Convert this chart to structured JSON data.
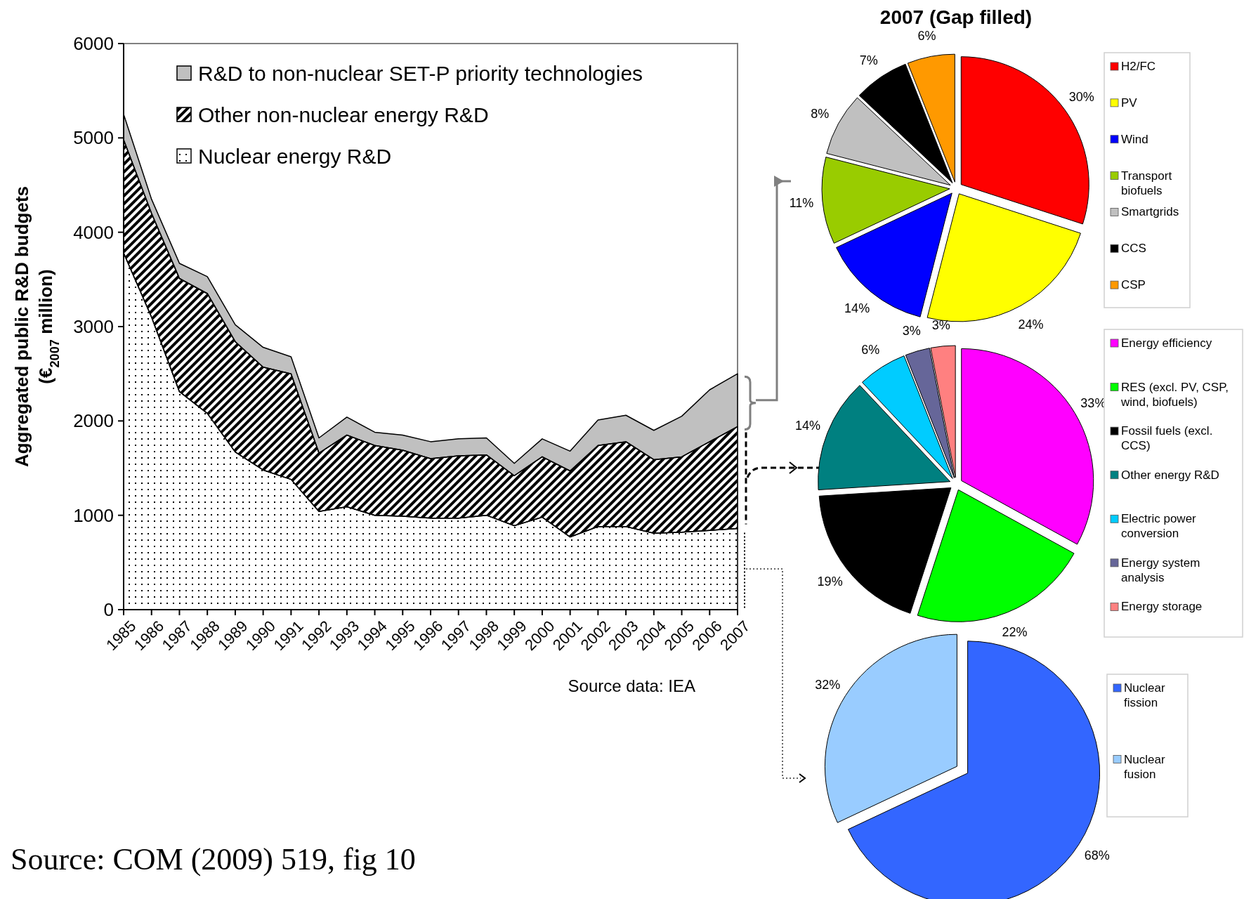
{
  "chart_data": [
    {
      "type": "area",
      "stacked": true,
      "ylabel": "Aggregated public R&D budgets (€$_{2007}$ million)",
      "ylim": [
        0,
        6000
      ],
      "yticks": [
        0,
        1000,
        2000,
        3000,
        4000,
        5000,
        6000
      ],
      "legend": "top left",
      "categories": [
        "1985",
        "1986",
        "1987",
        "1988",
        "1989",
        "1990",
        "1991",
        "1992",
        "1993",
        "1994",
        "1995",
        "1996",
        "1997",
        "1998",
        "1999",
        "2000",
        "2001",
        "2002",
        "2003",
        "2004",
        "2005",
        "2006",
        "2007"
      ],
      "series": [
        {
          "name": "Nuclear energy R&D",
          "color": "#ffffff",
          "values": [
            3780,
            3100,
            2310,
            2080,
            1670,
            1480,
            1380,
            1040,
            1090,
            1000,
            990,
            970,
            970,
            1000,
            890,
            980,
            770,
            880,
            880,
            810,
            820,
            840,
            860
          ]
        },
        {
          "name": "Other non-nuclear energy R&D",
          "color": "#808080",
          "values": [
            1200,
            1100,
            1200,
            1270,
            1170,
            1090,
            1120,
            620,
            760,
            740,
            700,
            630,
            660,
            640,
            530,
            640,
            700,
            860,
            900,
            780,
            800,
            940,
            1080
          ]
        },
        {
          "name": "R&D to non-nuclear SET-P priority technologies",
          "color": "#c0c0c0",
          "values": [
            270,
            150,
            160,
            180,
            180,
            210,
            180,
            160,
            190,
            140,
            160,
            180,
            180,
            180,
            130,
            190,
            210,
            270,
            280,
            310,
            430,
            550,
            560
          ]
        }
      ],
      "annotations": [
        "Source data: IEA",
        "Source: COM (2009) 519, fig 10"
      ]
    },
    {
      "type": "pie",
      "title": "2007 (Gap filled)",
      "legend": "right",
      "categories": [
        "H2/FC",
        "PV",
        "Wind",
        "Transport biofuels",
        "Smartgrids",
        "CCS",
        "CSP"
      ],
      "values": [
        30,
        24,
        14,
        11,
        8,
        7,
        6
      ],
      "value_labels": [
        "30%",
        "24%",
        "14%",
        "11%",
        "8%",
        "7%",
        "6%"
      ],
      "colors": [
        "#ff0000",
        "#ffff00",
        "#0000ff",
        "#99cc00",
        "#c0c0c0",
        "#000000",
        "#ff9900"
      ]
    },
    {
      "type": "pie",
      "legend": "right",
      "categories": [
        "Energy efficiency",
        "RES (excl. PV, CSP, wind, biofuels)",
        "Fossil fuels (excl. CCS)",
        "Other energy R&D",
        "Electric power conversion",
        "Energy system analysis",
        "Energy storage"
      ],
      "values": [
        33,
        22,
        19,
        14,
        6,
        3,
        3
      ],
      "value_labels": [
        "33%",
        "22%",
        "19%",
        "14%",
        "6%",
        "3%",
        "3%"
      ],
      "colors": [
        "#ff00ff",
        "#00ff00",
        "#000000",
        "#008080",
        "#00ccff",
        "#666699",
        "#ff8080"
      ]
    },
    {
      "type": "pie",
      "legend": "right",
      "categories": [
        "Nuclear fission",
        "Nuclear fusion"
      ],
      "values": [
        68,
        32
      ],
      "value_labels": [
        "68%",
        "32%"
      ],
      "colors": [
        "#3366ff",
        "#99ccff"
      ]
    }
  ]
}
